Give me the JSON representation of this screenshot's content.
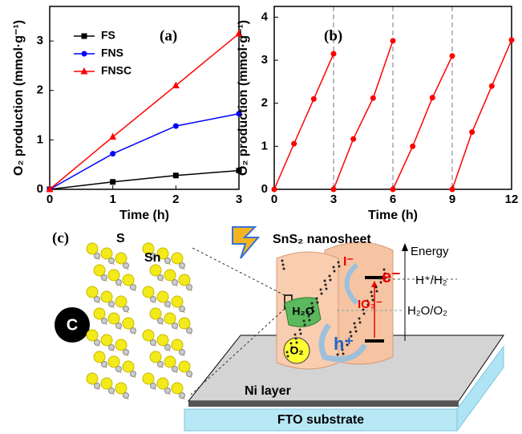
{
  "chart_data": [
    {
      "type": "line",
      "panel_label": "(a)",
      "xlabel": "Time (h)",
      "ylabel": "O₂ production (mmol·g⁻¹)",
      "x": [
        0,
        1,
        2,
        3
      ],
      "xlim": [
        0,
        3
      ],
      "xticks": [
        0,
        1,
        2,
        3
      ],
      "ylim": [
        0,
        3.7
      ],
      "yticks": [
        0,
        1,
        2,
        3
      ],
      "legend": "upper left",
      "series": [
        {
          "name": "FS",
          "color": "#000000",
          "marker": "square",
          "values": [
            0,
            0.15,
            0.28,
            0.38
          ]
        },
        {
          "name": "FNS",
          "color": "#0000ff",
          "marker": "circle",
          "values": [
            0,
            0.72,
            1.28,
            1.53
          ]
        },
        {
          "name": "FNSC",
          "color": "#ff0000",
          "marker": "triangle",
          "values": [
            0,
            1.06,
            2.1,
            3.15
          ]
        }
      ]
    },
    {
      "type": "line",
      "panel_label": "(b)",
      "xlabel": "Time (h)",
      "ylabel": "O₂ production (mmol·g⁻¹)",
      "x": [
        0,
        1,
        2,
        3,
        3,
        3,
        4,
        5,
        6,
        6,
        6,
        7,
        8,
        9,
        9,
        9,
        10,
        11,
        12
      ],
      "xlim": [
        0,
        12
      ],
      "xticks": [
        0,
        3,
        6,
        9,
        12
      ],
      "ylim": [
        0,
        4.25
      ],
      "yticks": [
        0,
        1,
        2,
        3,
        4
      ],
      "vlines": [
        3,
        6,
        9
      ],
      "series": [
        {
          "color": "#ff0000",
          "marker": "circle",
          "values": [
            0,
            1.06,
            2.1,
            3.15,
            null,
            0,
            1.17,
            2.12,
            3.45,
            null,
            0,
            1.0,
            2.13,
            3.1,
            null,
            0,
            1.33,
            2.4,
            3.47
          ]
        }
      ]
    }
  ],
  "diagram": {
    "panel_label": "(c)",
    "s_label": "S",
    "sn_label": "Sn",
    "c_label": "C",
    "sheet_label": "SnS₂ nanosheet",
    "energy_label": "Energy",
    "iodide": "I⁻",
    "electron": "e⁻",
    "h_couple": "H⁺/H₂",
    "iodate": "IO₃⁻",
    "o_couple": "H₂O/O₂",
    "water": "H₂O",
    "oxygen": "O₂",
    "hole": "h⁺",
    "ni_label": "Ni layer",
    "fto_label": "FTO substrate"
  }
}
